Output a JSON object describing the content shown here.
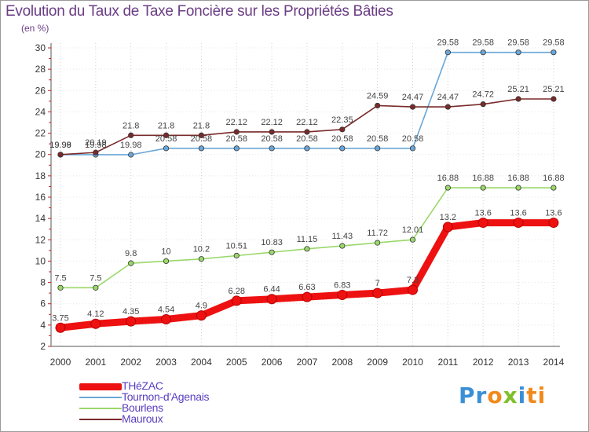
{
  "title": "Evolution du Taux de Taxe Foncière sur les Propriétés Bâties",
  "unit_label": "(en %)",
  "logo": {
    "p1": "Pr",
    "p2": "o",
    "p3": "x",
    "p4": "i",
    "p5": "ti"
  },
  "chart_data": {
    "type": "line",
    "title": "Evolution du Taux de Taxe Foncière sur les Propriétés Bâties",
    "ylabel": "(en %)",
    "xlabel": "",
    "ylim": [
      2,
      30
    ],
    "yticks": [
      2,
      4,
      6,
      8,
      10,
      12,
      14,
      16,
      18,
      20,
      22,
      24,
      26,
      28,
      30
    ],
    "grid": "dotted vertical",
    "legend_position": "bottom-left",
    "x": [
      "2000",
      "2001",
      "2002",
      "2003",
      "2004",
      "2005",
      "2006",
      "2007",
      "2008",
      "2009",
      "2010",
      "2011",
      "2012",
      "2013",
      "2014"
    ],
    "series": [
      {
        "name": "THéZAC",
        "color": "#ee1111",
        "values": [
          3.75,
          4.12,
          4.35,
          4.54,
          4.9,
          6.28,
          6.44,
          6.63,
          6.83,
          7,
          7.3,
          13.2,
          13.6,
          13.6,
          13.6
        ],
        "labels": [
          "3.75",
          "4.12",
          "4.35",
          "4.54",
          "4.9",
          "6.28",
          "6.44",
          "6.63",
          "6.83",
          "7",
          "7.3",
          "13.2",
          "13.6",
          "13.6",
          "13.6"
        ]
      },
      {
        "name": "Tournon-d'Agenais",
        "color": "#6aa6d8",
        "values": [
          19.98,
          19.98,
          19.98,
          20.58,
          20.58,
          20.58,
          20.58,
          20.58,
          20.58,
          20.58,
          20.58,
          29.58,
          29.58,
          29.58,
          29.58
        ],
        "labels": [
          "19.98",
          "19.98",
          "19.98",
          "20.58",
          "20.58",
          "20.58",
          "20.58",
          "20.58",
          "20.58",
          "20.58",
          "20.58",
          "29.58",
          "29.58",
          "29.58",
          "29.58"
        ]
      },
      {
        "name": "Bourlens",
        "color": "#9ad86a",
        "values": [
          7.5,
          7.5,
          9.8,
          10,
          10.2,
          10.51,
          10.83,
          11.15,
          11.43,
          11.72,
          12.01,
          16.88,
          16.88,
          16.88,
          16.88
        ],
        "labels": [
          "7.5",
          "7.5",
          "9.8",
          "10",
          "10.2",
          "10.51",
          "10.83",
          "11.15",
          "11.43",
          "11.72",
          "12.01",
          "16.88",
          "16.88",
          "16.88",
          "16.88"
        ]
      },
      {
        "name": "Mauroux",
        "color": "#7a2a2a",
        "values": [
          19.99,
          20.19,
          21.8,
          21.8,
          21.8,
          22.12,
          22.12,
          22.12,
          22.35,
          24.59,
          24.47,
          24.47,
          24.72,
          25.21,
          25.21
        ],
        "labels": [
          "19.99",
          "20.19",
          "21.8",
          "21.8",
          "21.8",
          "22.12",
          "22.12",
          "22.12",
          "22.35",
          "24.59",
          "24.47",
          "24.47",
          "24.72",
          "25.21",
          "25.21"
        ]
      }
    ]
  }
}
